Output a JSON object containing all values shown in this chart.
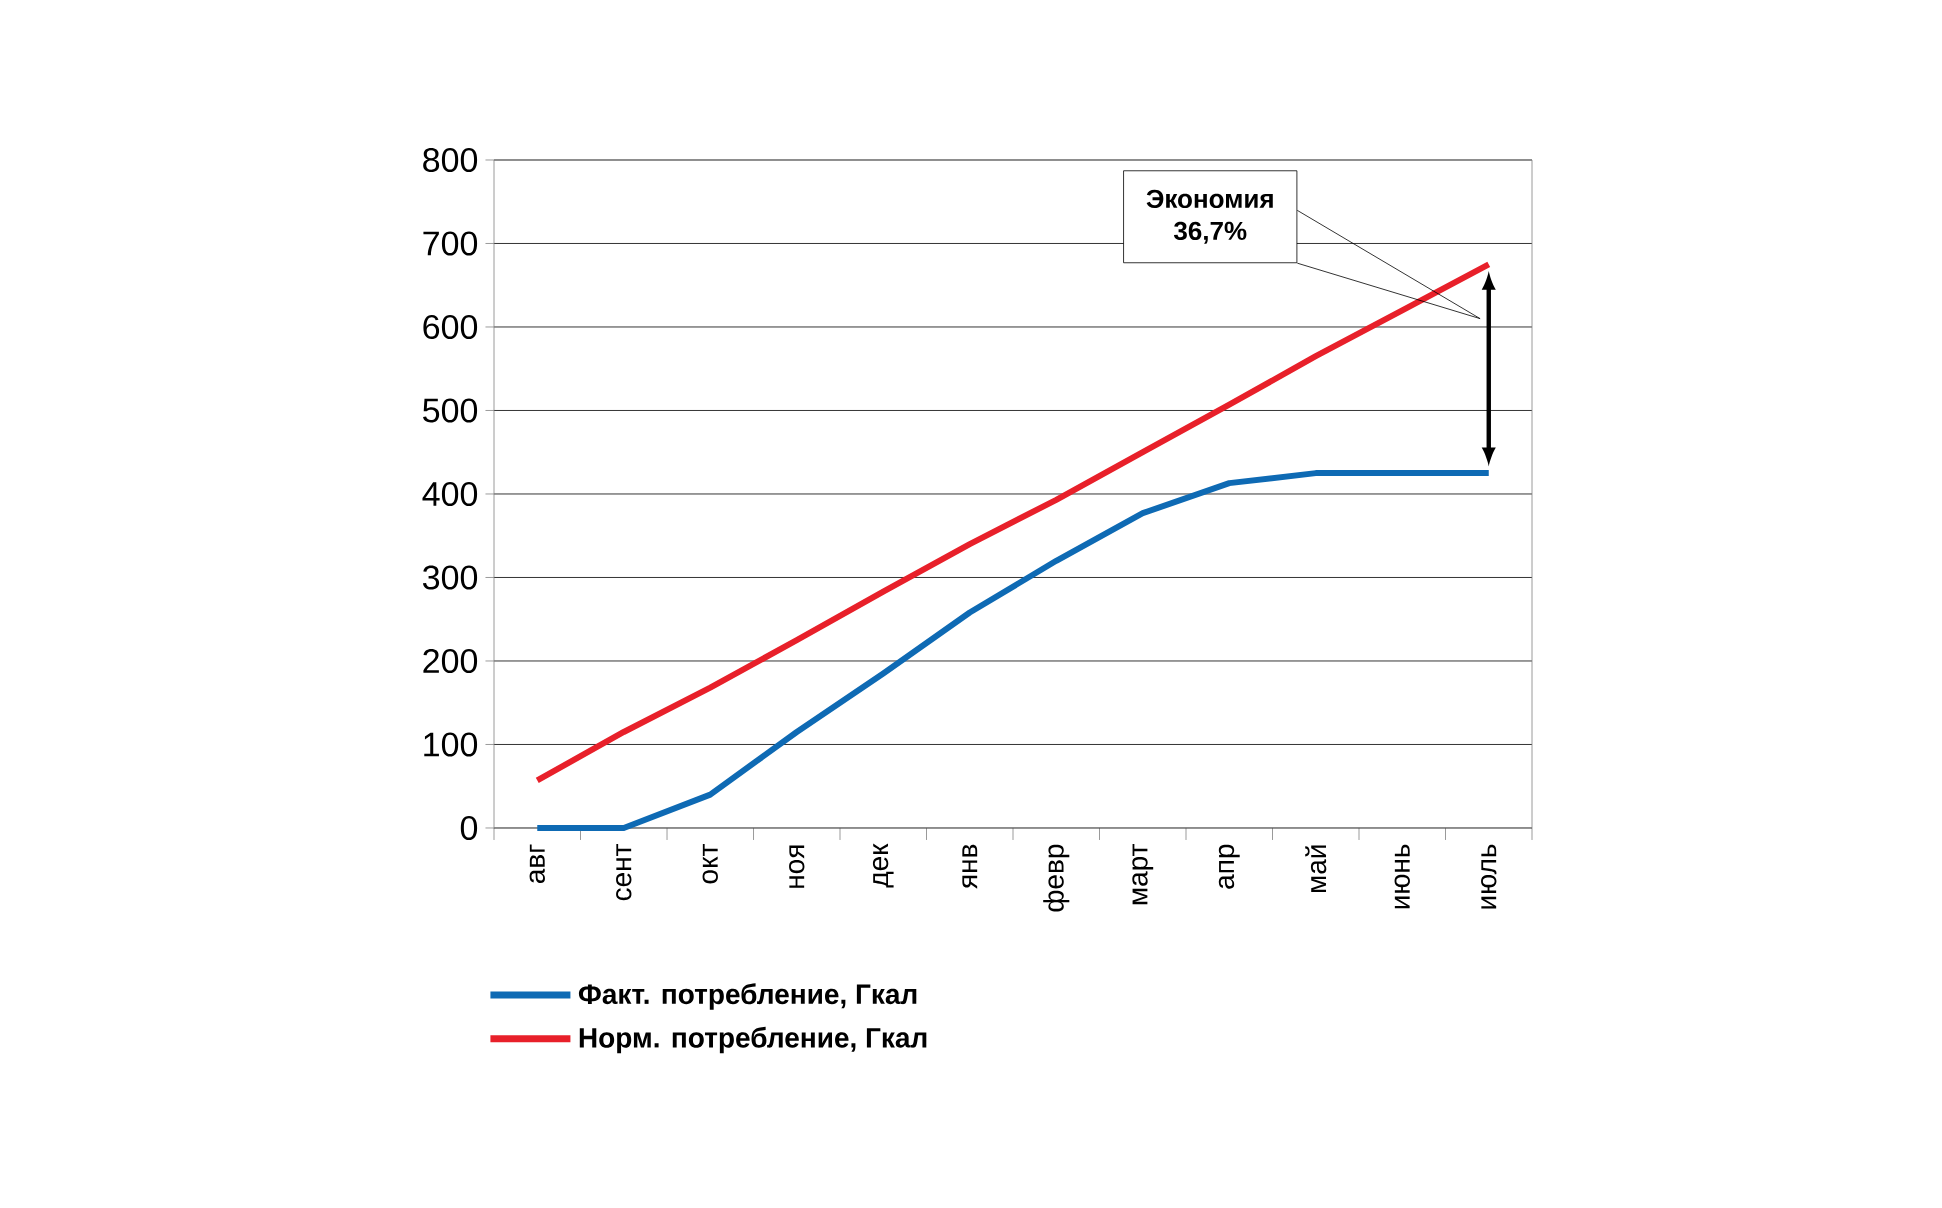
{
  "chart_data": {
    "type": "line",
    "categories": [
      "авг",
      "сент",
      "окт",
      "ноя",
      "дек",
      "янв",
      "февр",
      "март",
      "апр",
      "май",
      "июнь",
      "июль"
    ],
    "series": [
      {
        "name": "Факт. потребление, Гкал",
        "color": "#0e6ab4",
        "values": [
          0,
          0,
          40,
          115,
          185,
          258,
          320,
          377,
          413,
          425,
          425,
          425
        ]
      },
      {
        "name": "Норм. потребление, Гкал",
        "color": "#e8202a",
        "values": [
          57,
          115,
          168,
          225,
          283,
          340,
          393,
          450,
          507,
          565,
          620,
          675
        ]
      }
    ],
    "ylim": [
      0,
      800
    ],
    "yticks": [
      0,
      100,
      200,
      300,
      400,
      500,
      600,
      700,
      800
    ],
    "grid": "y",
    "legend": "bottom",
    "marker": "none",
    "line_style": "solid",
    "annotations": [
      "Экономия 36,7%"
    ]
  }
}
